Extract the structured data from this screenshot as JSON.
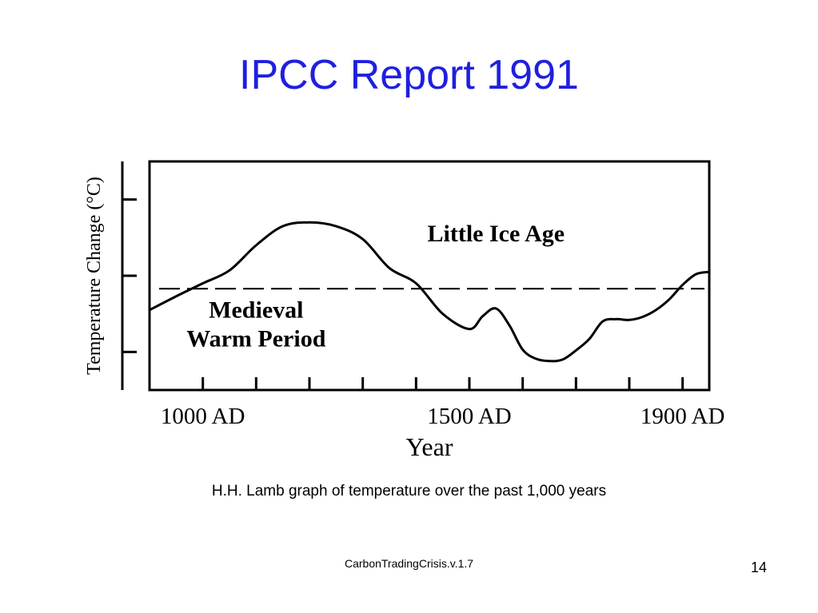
{
  "slide": {
    "title": "IPCC Report 1991",
    "caption": "H.H. Lamb graph of temperature over the past 1,000 years",
    "footer": "CarbonTradingCrisis.v.1.7",
    "page_number": "14"
  },
  "chart_data": {
    "type": "line",
    "title": "",
    "xlabel": "Year",
    "ylabel": "Temperature Change (°C)",
    "x_tick_labels": [
      {
        "label": "1000 AD",
        "x": 1000
      },
      {
        "label": "1500 AD",
        "x": 1500
      },
      {
        "label": "1900 AD",
        "x": 1900
      }
    ],
    "x_minor_ticks": [
      1100,
      1200,
      1300,
      1400,
      1500,
      1600,
      1700,
      1800
    ],
    "xlim": [
      900,
      1950
    ],
    "ylim": [
      0,
      3
    ],
    "y_ticks": [
      0.5,
      1.5,
      2.5
    ],
    "reference_line": {
      "y": 1.33,
      "style": "dashed"
    },
    "annotations": [
      {
        "text_lines": [
          "Little Ice Age"
        ],
        "x": 1550,
        "y": 1.95
      },
      {
        "text_lines": [
          "Medieval",
          "Warm Period"
        ],
        "x": 1100,
        "y": 0.95
      }
    ],
    "series": [
      {
        "x": [
          900,
          950,
          1000,
          1050,
          1100,
          1150,
          1200,
          1250,
          1300,
          1350,
          1400,
          1450,
          1500,
          1525,
          1550,
          1575,
          1600,
          1625,
          1650,
          1675,
          1700,
          1725,
          1750,
          1775,
          1800,
          1825,
          1850,
          1875,
          1900,
          1925,
          1950
        ],
        "y": [
          1.05,
          1.23,
          1.4,
          1.57,
          1.9,
          2.15,
          2.2,
          2.15,
          1.98,
          1.6,
          1.4,
          1.0,
          0.8,
          0.97,
          1.07,
          0.85,
          0.53,
          0.41,
          0.38,
          0.4,
          0.52,
          0.67,
          0.9,
          0.93,
          0.92,
          0.96,
          1.05,
          1.19,
          1.38,
          1.52,
          1.55
        ]
      }
    ]
  }
}
